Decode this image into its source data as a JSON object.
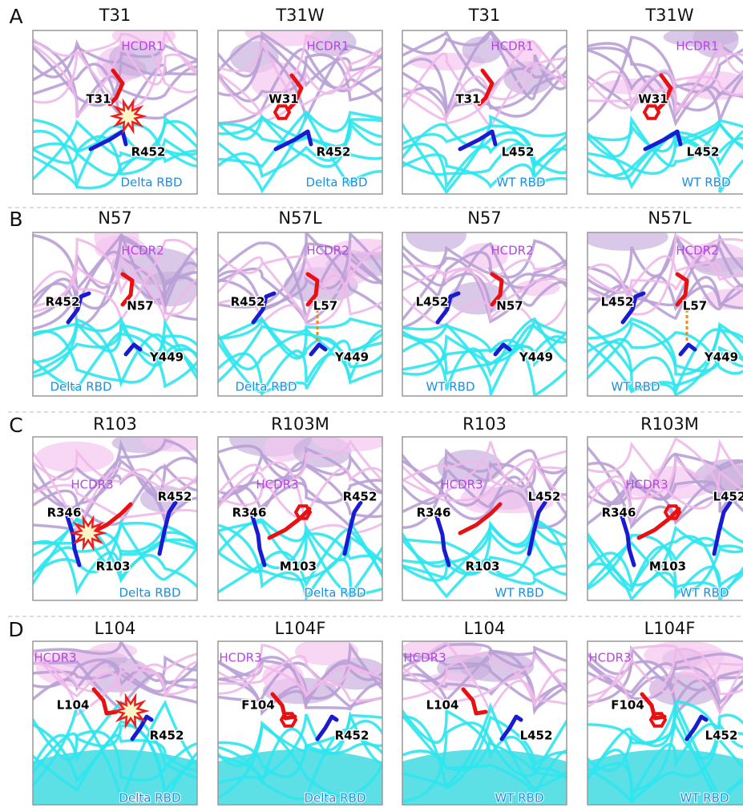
{
  "rows": [
    {
      "label": "A",
      "panels": [
        {
          "title": "T31",
          "labels": [
            "HCDR1",
            "T31",
            "R452",
            "Delta RBD"
          ]
        },
        {
          "title": "T31W",
          "labels": [
            "HCDR1",
            "W31",
            "R452",
            "Delta RBD"
          ]
        },
        {
          "title": "T31",
          "labels": [
            "HCDR1",
            "T31",
            "L452",
            "WT RBD"
          ]
        },
        {
          "title": "T31W",
          "labels": [
            "HCDR1",
            "W31",
            "L452",
            "WT RBD"
          ]
        }
      ]
    },
    {
      "label": "B",
      "panels": [
        {
          "title": "N57",
          "labels": [
            "HCDR2",
            "R452",
            "N57",
            "Y449",
            "Delta RBD"
          ]
        },
        {
          "title": "N57L",
          "labels": [
            "HCDR2",
            "R452",
            "L57",
            "Y449",
            "Delta RBD"
          ]
        },
        {
          "title": "N57",
          "labels": [
            "HCDR2",
            "L452",
            "N57",
            "Y449",
            "WT RBD"
          ]
        },
        {
          "title": "N57L",
          "labels": [
            "HCDR2",
            "L452",
            "L57",
            "Y449",
            "WT RBD"
          ]
        }
      ]
    },
    {
      "label": "C",
      "panels": [
        {
          "title": "R103",
          "labels": [
            "HCDR3",
            "R346",
            "R452",
            "R103",
            "Delta RBD"
          ]
        },
        {
          "title": "R103M",
          "labels": [
            "HCDR3",
            "R346",
            "R452",
            "M103",
            "Delta RBD"
          ]
        },
        {
          "title": "R103",
          "labels": [
            "HCDR3",
            "R346",
            "L452",
            "R103",
            "WT RBD"
          ]
        },
        {
          "title": "R103M",
          "labels": [
            "HCDR3",
            "R346",
            "L452",
            "M103",
            "WT RBD"
          ]
        }
      ]
    },
    {
      "label": "D",
      "panels": [
        {
          "title": "L104",
          "labels": [
            "HCDR3",
            "L104",
            "R452",
            "Delta RBD"
          ]
        },
        {
          "title": "L104F",
          "labels": [
            "HCDR3",
            "F104",
            "R452",
            "Delta RBD"
          ]
        },
        {
          "title": "L104",
          "labels": [
            "HCDR3",
            "L104",
            "L452",
            "WT RBD"
          ]
        },
        {
          "title": "L104F",
          "labels": [
            "HCDR3",
            "F104",
            "L452",
            "WT RBD"
          ]
        }
      ]
    }
  ]
}
